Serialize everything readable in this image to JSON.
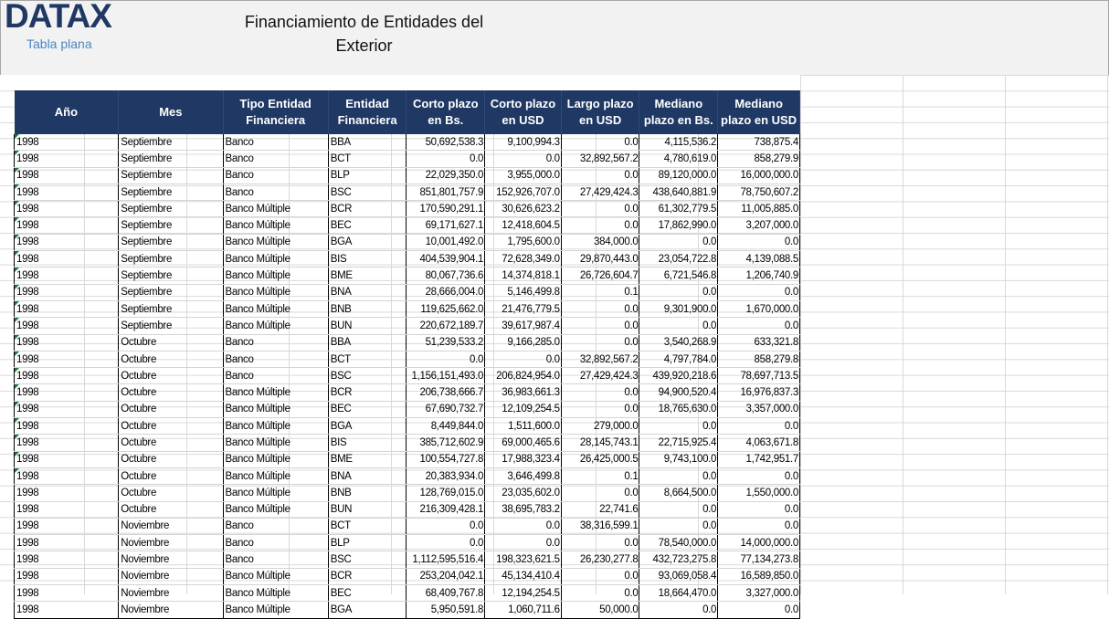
{
  "header": {
    "logo": "DATAX",
    "subtitle": "Tabla plana",
    "title_line1": "Financiamiento de Entidades del",
    "title_line2": "Exterior"
  },
  "colors": {
    "header_bg": "#1f3864",
    "logo": "#1f3864",
    "subtitle": "#4a86c5",
    "marker": "#1e7a3a"
  },
  "table": {
    "columns": [
      {
        "l1": "Año",
        "l2": ""
      },
      {
        "l1": "Mes",
        "l2": ""
      },
      {
        "l1": "Tipo Entidad",
        "l2": "Financiera"
      },
      {
        "l1": "Entidad",
        "l2": "Financiera"
      },
      {
        "l1": "Corto plazo",
        "l2": "en Bs."
      },
      {
        "l1": "Corto plazo",
        "l2": "en USD"
      },
      {
        "l1": "Largo plazo",
        "l2": "en USD"
      },
      {
        "l1": "Mediano",
        "l2": "plazo en Bs."
      },
      {
        "l1": "Mediano",
        "l2": "plazo en USD"
      }
    ],
    "rows": [
      [
        "1998",
        "Septiembre",
        "Banco",
        "BBA",
        "50,692,538.3",
        "9,100,994.3",
        "0.0",
        "4,115,536.2",
        "738,875.4"
      ],
      [
        "1998",
        "Septiembre",
        "Banco",
        "BCT",
        "0.0",
        "0.0",
        "32,892,567.2",
        "4,780,619.0",
        "858,279.9"
      ],
      [
        "1998",
        "Septiembre",
        "Banco",
        "BLP",
        "22,029,350.0",
        "3,955,000.0",
        "0.0",
        "89,120,000.0",
        "16,000,000.0"
      ],
      [
        "1998",
        "Septiembre",
        "Banco",
        "BSC",
        "851,801,757.9",
        "152,926,707.0",
        "27,429,424.3",
        "438,640,881.9",
        "78,750,607.2"
      ],
      [
        "1998",
        "Septiembre",
        "Banco Múltiple",
        "BCR",
        "170,590,291.1",
        "30,626,623.2",
        "0.0",
        "61,302,779.5",
        "11,005,885.0"
      ],
      [
        "1998",
        "Septiembre",
        "Banco Múltiple",
        "BEC",
        "69,171,627.1",
        "12,418,604.5",
        "0.0",
        "17,862,990.0",
        "3,207,000.0"
      ],
      [
        "1998",
        "Septiembre",
        "Banco Múltiple",
        "BGA",
        "10,001,492.0",
        "1,795,600.0",
        "384,000.0",
        "0.0",
        "0.0"
      ],
      [
        "1998",
        "Septiembre",
        "Banco Múltiple",
        "BIS",
        "404,539,904.1",
        "72,628,349.0",
        "29,870,443.0",
        "23,054,722.8",
        "4,139,088.5"
      ],
      [
        "1998",
        "Septiembre",
        "Banco Múltiple",
        "BME",
        "80,067,736.6",
        "14,374,818.1",
        "26,726,604.7",
        "6,721,546.8",
        "1,206,740.9"
      ],
      [
        "1998",
        "Septiembre",
        "Banco Múltiple",
        "BNA",
        "28,666,004.0",
        "5,146,499.8",
        "0.1",
        "0.0",
        "0.0"
      ],
      [
        "1998",
        "Septiembre",
        "Banco Múltiple",
        "BNB",
        "119,625,662.0",
        "21,476,779.5",
        "0.0",
        "9,301,900.0",
        "1,670,000.0"
      ],
      [
        "1998",
        "Septiembre",
        "Banco Múltiple",
        "BUN",
        "220,672,189.7",
        "39,617,987.4",
        "0.0",
        "0.0",
        "0.0"
      ],
      [
        "1998",
        "Octubre",
        "Banco",
        "BBA",
        "51,239,533.2",
        "9,166,285.0",
        "0.0",
        "3,540,268.9",
        "633,321.8"
      ],
      [
        "1998",
        "Octubre",
        "Banco",
        "BCT",
        "0.0",
        "0.0",
        "32,892,567.2",
        "4,797,784.0",
        "858,279.8"
      ],
      [
        "1998",
        "Octubre",
        "Banco",
        "BSC",
        "1,156,151,493.0",
        "206,824,954.0",
        "27,429,424.3",
        "439,920,218.6",
        "78,697,713.5"
      ],
      [
        "1998",
        "Octubre",
        "Banco Múltiple",
        "BCR",
        "206,738,666.7",
        "36,983,661.3",
        "0.0",
        "94,900,520.4",
        "16,976,837.3"
      ],
      [
        "1998",
        "Octubre",
        "Banco Múltiple",
        "BEC",
        "67,690,732.7",
        "12,109,254.5",
        "0.0",
        "18,765,630.0",
        "3,357,000.0"
      ],
      [
        "1998",
        "Octubre",
        "Banco Múltiple",
        "BGA",
        "8,449,844.0",
        "1,511,600.0",
        "279,000.0",
        "0.0",
        "0.0"
      ],
      [
        "1998",
        "Octubre",
        "Banco Múltiple",
        "BIS",
        "385,712,602.9",
        "69,000,465.6",
        "28,145,743.1",
        "22,715,925.4",
        "4,063,671.8"
      ],
      [
        "1998",
        "Octubre",
        "Banco Múltiple",
        "BME",
        "100,554,727.8",
        "17,988,323.4",
        "26,425,000.5",
        "9,743,100.0",
        "1,742,951.7"
      ],
      [
        "1998",
        "Octubre",
        "Banco Múltiple",
        "BNA",
        "20,383,934.0",
        "3,646,499.8",
        "0.1",
        "0.0",
        "0.0"
      ],
      [
        "1998",
        "Octubre",
        "Banco Múltiple",
        "BNB",
        "128,769,015.0",
        "23,035,602.0",
        "0.0",
        "8,664,500.0",
        "1,550,000.0"
      ],
      [
        "1998",
        "Octubre",
        "Banco Múltiple",
        "BUN",
        "216,309,428.1",
        "38,695,783.2",
        "22,741.6",
        "0.0",
        "0.0"
      ],
      [
        "1998",
        "Noviembre",
        "Banco",
        "BCT",
        "0.0",
        "0.0",
        "38,316,599.1",
        "0.0",
        "0.0"
      ],
      [
        "1998",
        "Noviembre",
        "Banco",
        "BLP",
        "0.0",
        "0.0",
        "0.0",
        "78,540,000.0",
        "14,000,000.0"
      ],
      [
        "1998",
        "Noviembre",
        "Banco",
        "BSC",
        "1,112,595,516.4",
        "198,323,621.5",
        "26,230,277.8",
        "432,723,275.8",
        "77,134,273.8"
      ],
      [
        "1998",
        "Noviembre",
        "Banco Múltiple",
        "BCR",
        "253,204,042.1",
        "45,134,410.4",
        "0.0",
        "93,069,058.4",
        "16,589,850.0"
      ],
      [
        "1998",
        "Noviembre",
        "Banco Múltiple",
        "BEC",
        "68,409,767.8",
        "12,194,254.5",
        "0.0",
        "18,664,470.0",
        "3,327,000.0"
      ],
      [
        "1998",
        "Noviembre",
        "Banco Múltiple",
        "BGA",
        "5,950,591.8",
        "1,060,711.6",
        "50,000.0",
        "0.0",
        "0.0"
      ]
    ],
    "marked_rows": 21
  }
}
